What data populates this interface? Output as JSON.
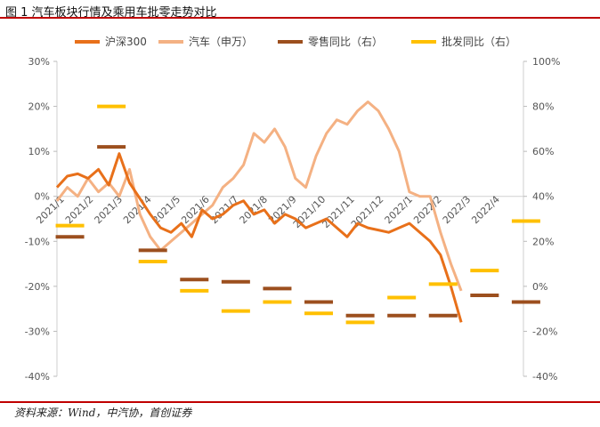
{
  "title": "图 1 汽车板块行情及乘用车批零走势对比",
  "source": "资料来源：Wind，中汽协，首创证券",
  "chart_data": {
    "type": "line",
    "title": "图 1 汽车板块行情及乘用车批零走势对比",
    "left_axis": {
      "ticks": [
        "30%",
        "20%",
        "10%",
        "0%",
        "-10%",
        "-20%",
        "-30%",
        "-40%"
      ],
      "ylim": [
        -40,
        30
      ],
      "unit": "%"
    },
    "right_axis": {
      "ticks": [
        "100%",
        "80%",
        "60%",
        "40%",
        "20%",
        "0%",
        "-20%",
        "-40%"
      ],
      "ylim": [
        -40,
        100
      ],
      "unit": "%"
    },
    "x_tick_labels": [
      "2021/1",
      "2021/2",
      "2021/3",
      "2021/4",
      "2021/5",
      "2021/6",
      "2021/7",
      "2021/8",
      "2021/9",
      "2021/10",
      "2021/11",
      "2021/12",
      "2022/1",
      "2022/2",
      "2022/3",
      "2022/4"
    ],
    "legend": [
      "沪深300",
      "汽车（申万）",
      "零售同比（右）",
      "批发同比（右）"
    ],
    "colors": {
      "hs300": "#e8701a",
      "auto": "#f4b183",
      "retail": "#9c4f1e",
      "wholesale": "#ffc000"
    },
    "series": [
      {
        "name": "沪深300",
        "axis": "left",
        "x": [
          0,
          2,
          4,
          6,
          8,
          10,
          12,
          14,
          16,
          18,
          20,
          22,
          24,
          26,
          28,
          30,
          32,
          34,
          36,
          38,
          40,
          42,
          44,
          46,
          48,
          50,
          52,
          54,
          56,
          58,
          60,
          62,
          64,
          66,
          68,
          70,
          72,
          74,
          76,
          78
        ],
        "values": [
          2,
          4.5,
          5,
          4,
          6,
          2.5,
          9.5,
          3,
          -0.5,
          -4,
          -7,
          -8,
          -6,
          -9,
          -3,
          -5,
          -4,
          -2,
          -1,
          -4,
          -3,
          -6,
          -4,
          -5,
          -7,
          -6,
          -5,
          -7,
          -9,
          -6,
          -7,
          -7.5,
          -8,
          -7,
          -6,
          -8,
          -10,
          -13,
          -20,
          -28
        ]
      },
      {
        "name": "汽车（申万）",
        "axis": "left",
        "x": [
          0,
          2,
          4,
          6,
          8,
          10,
          12,
          14,
          16,
          18,
          20,
          22,
          24,
          26,
          28,
          30,
          32,
          34,
          36,
          38,
          40,
          42,
          44,
          46,
          48,
          50,
          52,
          54,
          56,
          58,
          60,
          62,
          64,
          66,
          68,
          70,
          72,
          74,
          76,
          78
        ],
        "values": [
          -1,
          2,
          0,
          4,
          1,
          3,
          0,
          6,
          -4,
          -9,
          -12,
          -10,
          -8,
          -6,
          -4,
          -2,
          2,
          4,
          7,
          14,
          12,
          15,
          11,
          4,
          2,
          9,
          14,
          17,
          16,
          19,
          21,
          19,
          15,
          10,
          1,
          0,
          0,
          -8,
          -15,
          -21
        ]
      },
      {
        "name": "零售同比（右）",
        "axis": "right",
        "x": [
          0,
          8,
          16,
          24,
          32,
          40,
          48,
          56,
          64,
          72,
          80,
          88
        ],
        "values": [
          22,
          62,
          16,
          3,
          2,
          -1,
          -7,
          -13,
          -13,
          -13,
          -4,
          -7
        ]
      },
      {
        "name": "批发同比（右）",
        "axis": "right",
        "x": [
          0,
          8,
          16,
          24,
          32,
          40,
          48,
          56,
          64,
          72,
          80,
          88
        ],
        "values": [
          27,
          80,
          11,
          -2,
          -11,
          -7,
          -12,
          -16,
          -5,
          1,
          7,
          29
        ]
      }
    ]
  }
}
